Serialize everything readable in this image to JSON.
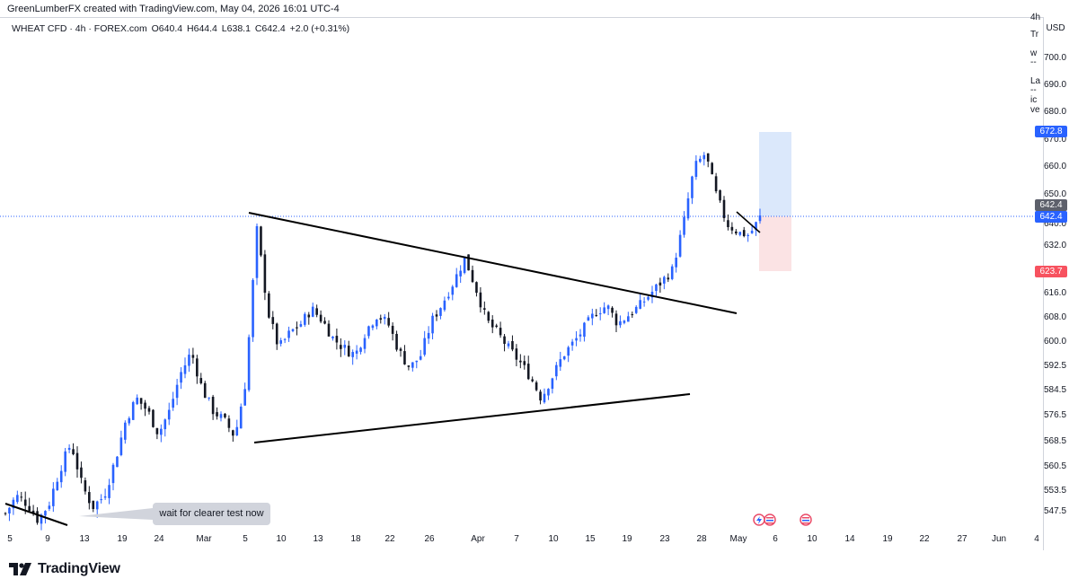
{
  "header": {
    "attribution": "GreenLumberFX created with TradingView.com, May 04, 2026 16:01 UTC-4"
  },
  "symbol": {
    "name": "WHEAT CFD · 4h · FOREX.com",
    "open": "O640.4",
    "high": "H644.4",
    "low": "L638.1",
    "close": "C642.4",
    "change": "+2.0 (+0.31%)"
  },
  "currency": "USD",
  "right_panel_fragments": [
    "4h",
    "Tr",
    "w",
    "--",
    "La",
    "--",
    "ic",
    "ve"
  ],
  "price_tags": {
    "target": "672.8",
    "current_top": "642.4",
    "current_bottom": "642.4",
    "stop": "623.7"
  },
  "callout": {
    "text": "wait for clearer test now"
  },
  "brand": {
    "name": "TradingView"
  },
  "colors": {
    "up": "#2962ff",
    "down": "#131722",
    "target": "#2962ff",
    "stop": "#f7525f",
    "profit_zone": "#dbe8fb",
    "loss_zone": "#fbe3e4",
    "price_line": "#2962ff"
  },
  "chart_data": {
    "type": "candlestick",
    "symbol": "WHEAT CFD",
    "timeframe": "4h",
    "y_ticks": [
      700.0,
      690.0,
      680.0,
      670.0,
      660.0,
      650.0,
      640.0,
      632.0,
      616.0,
      608.0,
      600.0,
      592.5,
      584.5,
      576.5,
      568.5,
      560.5,
      553.5,
      547.5
    ],
    "x_ticks": [
      "5",
      "9",
      "13",
      "19",
      "24",
      "Mar",
      "5",
      "10",
      "13",
      "18",
      "22",
      "26",
      "Apr",
      "7",
      "10",
      "15",
      "19",
      "23",
      "28",
      "May",
      "6",
      "10",
      "14",
      "19",
      "22",
      "27",
      "Jun",
      "4"
    ],
    "price_path": [
      [
        0,
        547
      ],
      [
        2,
        552
      ],
      [
        4,
        550
      ],
      [
        6,
        545
      ],
      [
        8,
        550
      ],
      [
        10,
        560
      ],
      [
        12,
        568
      ],
      [
        14,
        555
      ],
      [
        16,
        549
      ],
      [
        18,
        552
      ],
      [
        20,
        562
      ],
      [
        22,
        575
      ],
      [
        24,
        582
      ],
      [
        26,
        578
      ],
      [
        28,
        571
      ],
      [
        30,
        578
      ],
      [
        32,
        590
      ],
      [
        34,
        597
      ],
      [
        36,
        585
      ],
      [
        38,
        578
      ],
      [
        40,
        575
      ],
      [
        42,
        570
      ],
      [
        44,
        588
      ],
      [
        46,
        638
      ],
      [
        48,
        610
      ],
      [
        50,
        598
      ],
      [
        52,
        603
      ],
      [
        54,
        606
      ],
      [
        56,
        611
      ],
      [
        58,
        607
      ],
      [
        60,
        601
      ],
      [
        62,
        598
      ],
      [
        64,
        596
      ],
      [
        66,
        604
      ],
      [
        68,
        609
      ],
      [
        70,
        606
      ],
      [
        72,
        597
      ],
      [
        74,
        592
      ],
      [
        76,
        596
      ],
      [
        78,
        607
      ],
      [
        80,
        613
      ],
      [
        82,
        620
      ],
      [
        84,
        628
      ],
      [
        86,
        618
      ],
      [
        88,
        607
      ],
      [
        90,
        603
      ],
      [
        92,
        598
      ],
      [
        94,
        594
      ],
      [
        96,
        589
      ],
      [
        98,
        582
      ],
      [
        100,
        589
      ],
      [
        102,
        596
      ],
      [
        104,
        600
      ],
      [
        106,
        605
      ],
      [
        108,
        610
      ],
      [
        110,
        612
      ],
      [
        112,
        606
      ],
      [
        114,
        609
      ],
      [
        116,
        612
      ],
      [
        118,
        616
      ],
      [
        120,
        620
      ],
      [
        122,
        624
      ],
      [
        124,
        640
      ],
      [
        126,
        660
      ],
      [
        128,
        665
      ],
      [
        130,
        650
      ],
      [
        132,
        640
      ],
      [
        134,
        637
      ],
      [
        136,
        636
      ],
      [
        138,
        642.4
      ]
    ],
    "trendlines": [
      {
        "name": "descending resistance",
        "from": [
          "Mar 6",
          644
        ],
        "to": [
          "Apr 29",
          609
        ]
      },
      {
        "name": "ascending support",
        "from": [
          "Mar 6",
          569
        ],
        "to": [
          "Apr 25",
          584
        ]
      },
      {
        "name": "short-term down line",
        "from": [
          "May 1",
          645
        ],
        "to": [
          "May 4",
          638
        ]
      },
      {
        "name": "early down line",
        "from": [
          "Feb 5",
          553
        ],
        "to": [
          "Feb 11",
          547.5
        ]
      }
    ],
    "last_price": 642.4,
    "position": {
      "entry": 642.4,
      "target": 672.8,
      "stop": 623.7
    }
  }
}
